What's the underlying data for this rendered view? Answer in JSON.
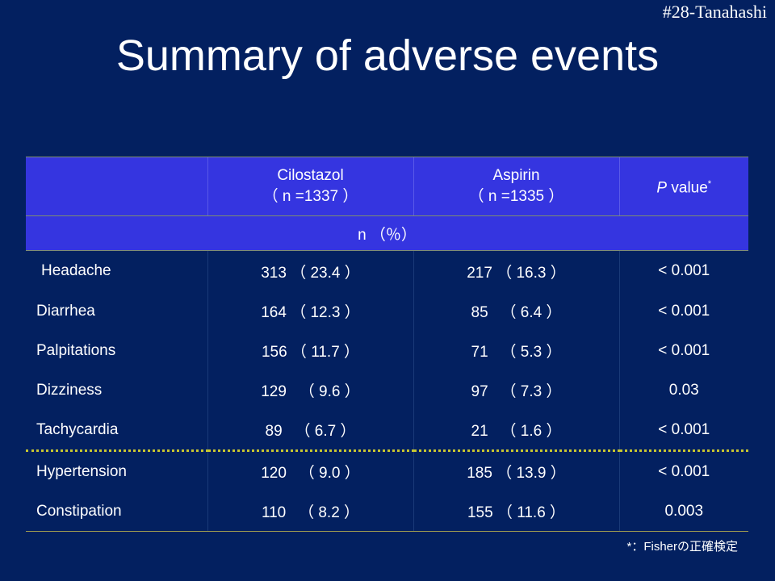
{
  "slide_tag": "#28-Tanahashi",
  "title": "Summary of adverse events",
  "table": {
    "header": {
      "col1_name": "Cilostazol",
      "col1_n": "（ n =1337 ）",
      "col2_name": "Aspirin",
      "col2_n": "（ n =1335 ）",
      "pvalue_p": "P",
      "pvalue_label": " value",
      "pvalue_mark": "*"
    },
    "unit_row": "n （％）",
    "rows": [
      {
        "event": "Headache",
        "cilostazol": "313 （ 23.4 ）",
        "aspirin": "217 （ 16.3 ）",
        "p": "< 0.001"
      },
      {
        "event": "Diarrhea",
        "cilostazol": "164 （ 12.3 ）",
        "aspirin": "85   （ 6.4 ）",
        "p": "< 0.001"
      },
      {
        "event": "Palpitations",
        "cilostazol": "156 （ 11.7 ）",
        "aspirin": "71   （ 5.3 ）",
        "p": "< 0.001"
      },
      {
        "event": "Dizziness",
        "cilostazol": "129   （ 9.6 ）",
        "aspirin": "97   （ 7.3 ）",
        "p": "0.03"
      },
      {
        "event": "Tachycardia",
        "cilostazol": "89   （ 6.7 ）",
        "aspirin": "21   （ 1.6 ）",
        "p": "< 0.001"
      },
      {
        "event": "Hypertension",
        "cilostazol": "120   （ 9.0 ）",
        "aspirin": "185 （ 13.9 ）",
        "p": "< 0.001"
      },
      {
        "event": "Constipation",
        "cilostazol": "110   （ 8.2 ）",
        "aspirin": "155 （ 11.6 ）",
        "p": "0.003"
      }
    ]
  },
  "footnote": "*：Fisherの正確検定"
}
